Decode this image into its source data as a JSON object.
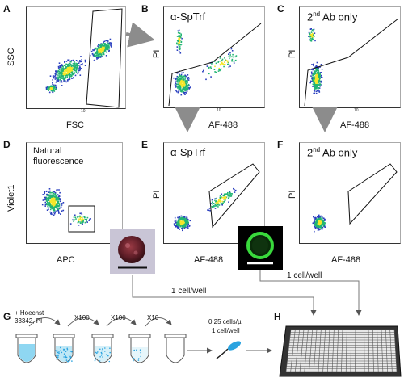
{
  "panels": {
    "A": {
      "letter": "A",
      "xlabel": "FSC",
      "ylabel": "SSC"
    },
    "B": {
      "letter": "B",
      "title": "α-SpTrf",
      "xlabel": "AF-488",
      "ylabel": "PI"
    },
    "C": {
      "letter": "C",
      "title_main": "2",
      "title_sup": "nd",
      "title_rest": " Ab only",
      "xlabel": "AF-488",
      "ylabel": "PI"
    },
    "D": {
      "letter": "D",
      "title_line1": "Natural",
      "title_line2": "fluorescence",
      "xlabel": "APC",
      "ylabel": "Violet1"
    },
    "E": {
      "letter": "E",
      "title": "α-SpTrf",
      "xlabel": "AF-488",
      "ylabel": "PI"
    },
    "F": {
      "letter": "F",
      "title_main": "2",
      "title_sup": "nd",
      "title_rest": " Ab only",
      "xlabel": "AF-488",
      "ylabel": "PI"
    },
    "G": {
      "letter": "G",
      "stain_line1": "+ Hoechst",
      "stain_line2": "33342, PI",
      "dilutions": [
        "X100",
        "X100",
        "X10"
      ],
      "density": "0.25 cells/µl",
      "per_well": "1 cell/well"
    },
    "H": {
      "letter": "H"
    }
  },
  "arrow_labels": {
    "left_sort": "1 cell/well",
    "right_sort": "1 cell/well"
  },
  "ticks": {
    "ten": "10",
    "e3": "3",
    "e4": "4",
    "e5": "5"
  },
  "colors": {
    "density_low": "#2a3fbf",
    "density_mid": "#22b573",
    "density_high": "#f5e72a",
    "arrow_gray": "#8c8c8c",
    "plate": "#2b2b2b"
  }
}
